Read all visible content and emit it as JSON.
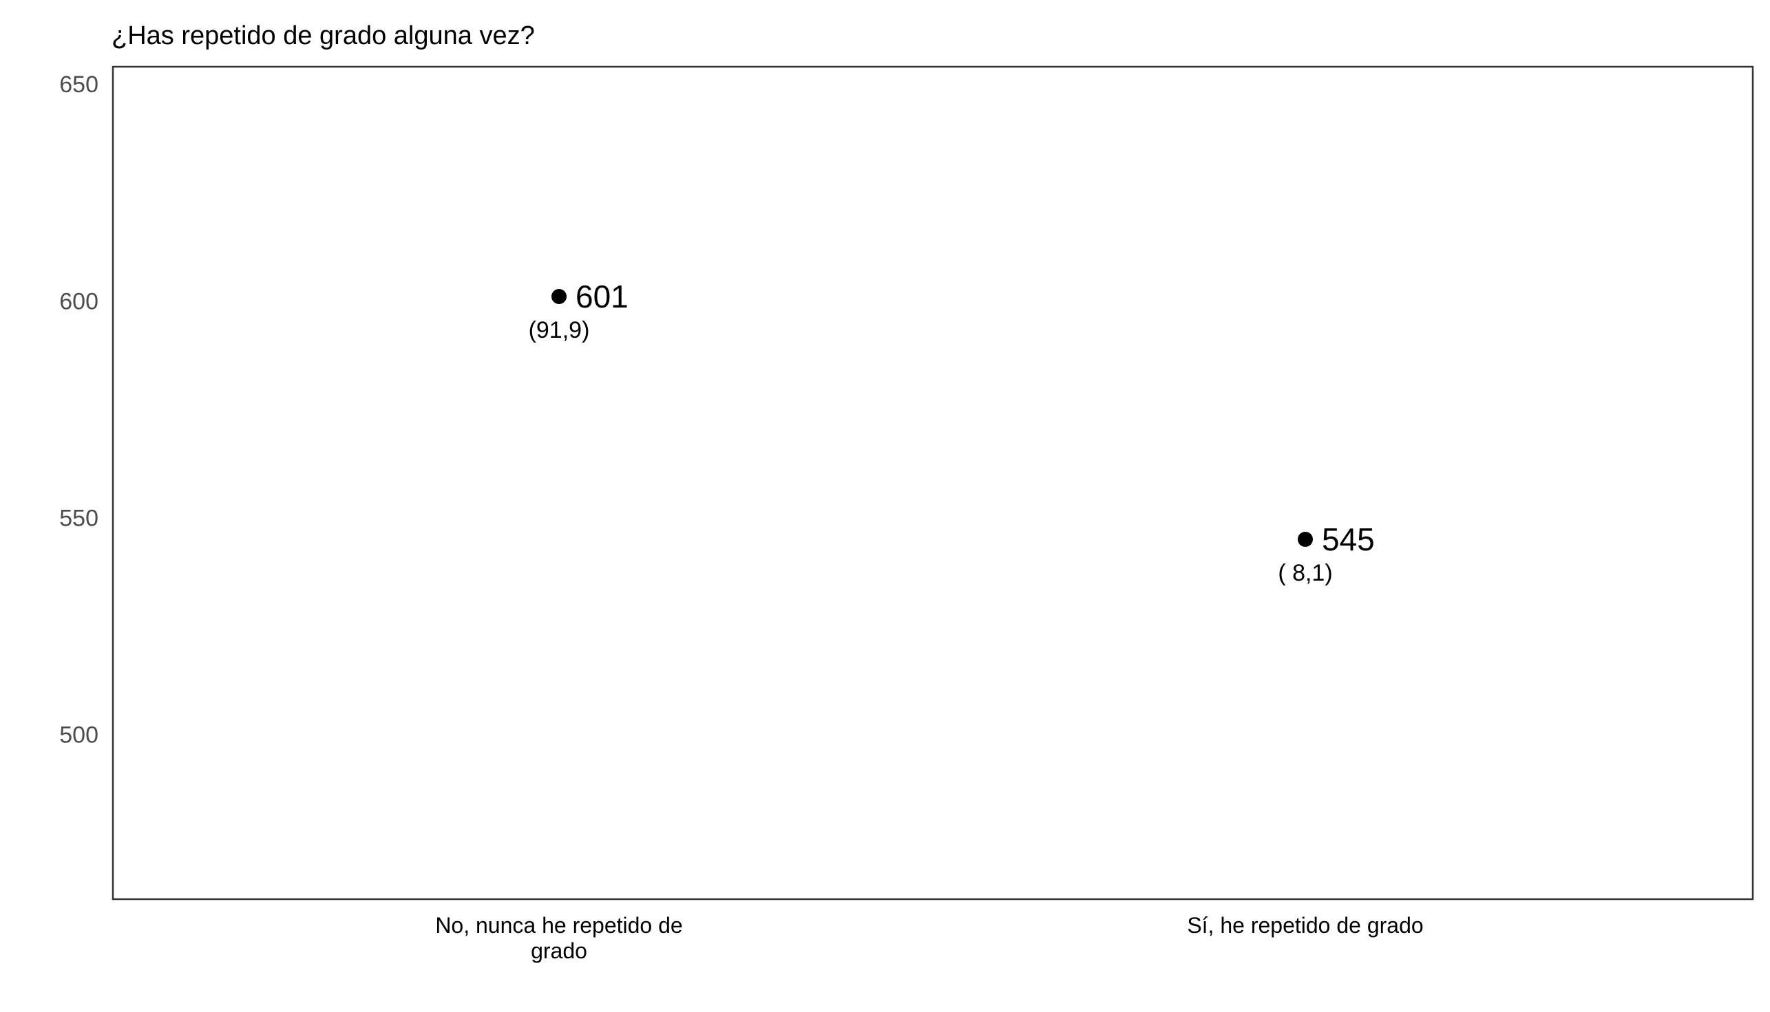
{
  "chart_data": {
    "type": "scatter",
    "title": "¿Has repetido de grado alguna vez?",
    "xlabel": "",
    "ylabel": "",
    "ylim": [
      462,
      654
    ],
    "y_ticks": [
      500,
      550,
      600,
      650
    ],
    "y_tick_labels": [
      "500",
      "550",
      "600",
      "650"
    ],
    "grid": false,
    "categories": [
      [
        "No, nunca he repetido de",
        "grado"
      ],
      [
        "Sí, he repetido de grado"
      ]
    ],
    "values": [
      601,
      545
    ],
    "value_labels": [
      "601",
      "545"
    ],
    "percent_labels": [
      "(91,9)",
      "( 8,1)"
    ],
    "colors": {
      "point": "#000000",
      "axis": "#000000",
      "tick_text": "#4d4d4d"
    }
  }
}
